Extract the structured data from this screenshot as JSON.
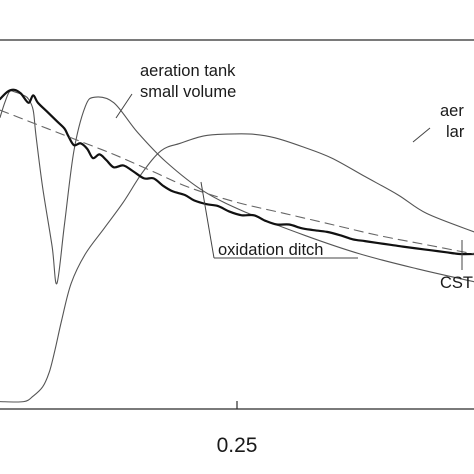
{
  "chart_data": {
    "type": "line",
    "xlabel": "",
    "ylabel": "",
    "x_ticks": [
      {
        "value": 0.25,
        "label": "0.25"
      }
    ],
    "series": [
      {
        "name": "aeration tank small volume",
        "style": "thin-solid",
        "points": [
          [
            0.0,
            0.79
          ],
          [
            0.005,
            0.83
          ],
          [
            0.01,
            0.86
          ],
          [
            0.015,
            0.86
          ],
          [
            0.025,
            0.85
          ],
          [
            0.03,
            0.84
          ],
          [
            0.035,
            0.81
          ],
          [
            0.038,
            0.74
          ],
          [
            0.045,
            0.6
          ],
          [
            0.055,
            0.44
          ],
          [
            0.06,
            0.34
          ],
          [
            0.068,
            0.5
          ],
          [
            0.078,
            0.7
          ],
          [
            0.09,
            0.82
          ],
          [
            0.1,
            0.845
          ],
          [
            0.12,
            0.83
          ],
          [
            0.145,
            0.75
          ],
          [
            0.175,
            0.67
          ],
          [
            0.215,
            0.59
          ],
          [
            0.262,
            0.53
          ],
          [
            0.322,
            0.47
          ],
          [
            0.38,
            0.42
          ],
          [
            0.44,
            0.38
          ],
          [
            0.5,
            0.345
          ]
        ]
      },
      {
        "name": "aeration tank large volume",
        "style": "thin-solid",
        "points": [
          [
            0.0,
            0.02
          ],
          [
            0.025,
            0.02
          ],
          [
            0.035,
            0.035
          ],
          [
            0.045,
            0.06
          ],
          [
            0.052,
            0.1
          ],
          [
            0.058,
            0.16
          ],
          [
            0.065,
            0.24
          ],
          [
            0.075,
            0.34
          ],
          [
            0.09,
            0.42
          ],
          [
            0.11,
            0.49
          ],
          [
            0.13,
            0.56
          ],
          [
            0.15,
            0.64
          ],
          [
            0.17,
            0.7
          ],
          [
            0.19,
            0.72
          ],
          [
            0.215,
            0.74
          ],
          [
            0.24,
            0.745
          ],
          [
            0.265,
            0.745
          ],
          [
            0.29,
            0.735
          ],
          [
            0.32,
            0.71
          ],
          [
            0.35,
            0.68
          ],
          [
            0.385,
            0.63
          ],
          [
            0.42,
            0.58
          ],
          [
            0.45,
            0.53
          ],
          [
            0.5,
            0.48
          ]
        ]
      },
      {
        "name": "oxidation ditch",
        "style": "thick-solid",
        "points": [
          [
            0.0,
            0.84
          ],
          [
            0.008,
            0.86
          ],
          [
            0.015,
            0.865
          ],
          [
            0.022,
            0.855
          ],
          [
            0.03,
            0.83
          ],
          [
            0.035,
            0.85
          ],
          [
            0.04,
            0.83
          ],
          [
            0.05,
            0.805
          ],
          [
            0.06,
            0.78
          ],
          [
            0.068,
            0.76
          ],
          [
            0.072,
            0.74
          ],
          [
            0.078,
            0.715
          ],
          [
            0.085,
            0.72
          ],
          [
            0.092,
            0.705
          ],
          [
            0.098,
            0.68
          ],
          [
            0.105,
            0.69
          ],
          [
            0.112,
            0.675
          ],
          [
            0.12,
            0.655
          ],
          [
            0.13,
            0.66
          ],
          [
            0.14,
            0.645
          ],
          [
            0.152,
            0.625
          ],
          [
            0.162,
            0.625
          ],
          [
            0.172,
            0.605
          ],
          [
            0.182,
            0.59
          ],
          [
            0.195,
            0.58
          ],
          [
            0.205,
            0.565
          ],
          [
            0.218,
            0.555
          ],
          [
            0.23,
            0.55
          ],
          [
            0.242,
            0.535
          ],
          [
            0.255,
            0.525
          ],
          [
            0.268,
            0.525
          ],
          [
            0.28,
            0.51
          ],
          [
            0.292,
            0.5
          ],
          [
            0.305,
            0.5
          ],
          [
            0.318,
            0.49
          ],
          [
            0.33,
            0.485
          ],
          [
            0.345,
            0.48
          ],
          [
            0.36,
            0.47
          ],
          [
            0.372,
            0.46
          ],
          [
            0.385,
            0.455
          ],
          [
            0.398,
            0.45
          ],
          [
            0.412,
            0.445
          ],
          [
            0.425,
            0.44
          ],
          [
            0.44,
            0.435
          ],
          [
            0.455,
            0.43
          ],
          [
            0.47,
            0.425
          ],
          [
            0.485,
            0.42
          ],
          [
            0.5,
            0.42
          ]
        ]
      },
      {
        "name": "CSTR",
        "style": "dashed",
        "points": [
          [
            0.0,
            0.81
          ],
          [
            0.02,
            0.79
          ],
          [
            0.05,
            0.76
          ],
          [
            0.08,
            0.73
          ],
          [
            0.12,
            0.69
          ],
          [
            0.16,
            0.645
          ],
          [
            0.2,
            0.6
          ],
          [
            0.25,
            0.56
          ],
          [
            0.3,
            0.53
          ],
          [
            0.35,
            0.5
          ],
          [
            0.4,
            0.47
          ],
          [
            0.45,
            0.445
          ],
          [
            0.5,
            0.42
          ]
        ]
      }
    ],
    "annotations": [
      {
        "lines": [
          "aeration tank",
          "small volume"
        ]
      },
      {
        "lines": [
          "aer",
          "lar"
        ]
      },
      {
        "lines": [
          "oxidation ditch"
        ]
      },
      {
        "lines": [
          "CST"
        ]
      }
    ],
    "grid": false,
    "legend": "none"
  }
}
